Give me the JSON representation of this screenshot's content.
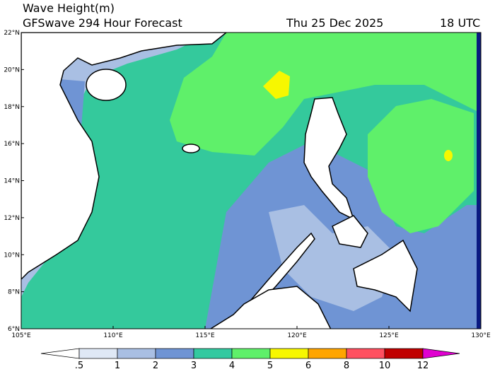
{
  "header": {
    "title": "Wave Height(m)",
    "subtitle": "GFSwave 294 Hour Forecast",
    "date": "Thu 25 Dec 2025",
    "time": "18 UTC"
  },
  "map": {
    "lat_labels": [
      "22°N",
      "20°N",
      "18°N",
      "16°N",
      "14°N",
      "12°N",
      "10°N",
      "8°N",
      "6°N"
    ],
    "lon_labels": [
      "105°E",
      "110°E",
      "115°E",
      "120°E",
      "125°E",
      "130°E"
    ]
  },
  "colorbar": {
    "labels": [
      ".5",
      "1",
      "2",
      "3",
      "4",
      "5",
      "6",
      "8",
      "10",
      "12"
    ],
    "colors": [
      "#ffffff",
      "#dfe8f5",
      "#a9bfe3",
      "#6f94d4",
      "#33c9a0",
      "#5ff06a",
      "#f7f700",
      "#ffa500",
      "#ff5060",
      "#c00000",
      "#e000d0"
    ]
  }
}
